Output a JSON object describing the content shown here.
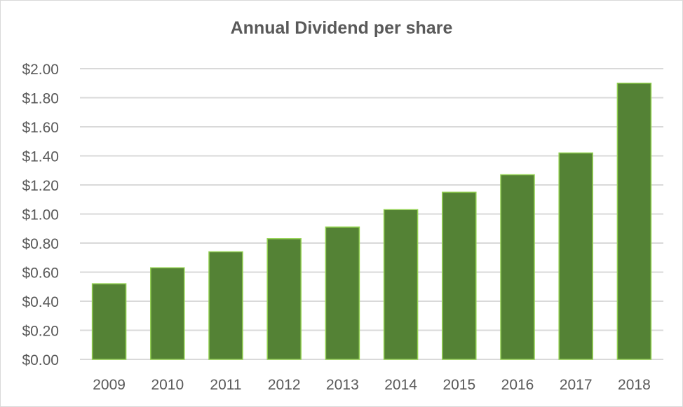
{
  "chart_data": {
    "type": "bar",
    "title": "Annual Dividend per share",
    "categories": [
      "2009",
      "2010",
      "2011",
      "2012",
      "2013",
      "2014",
      "2015",
      "2016",
      "2017",
      "2018"
    ],
    "values": [
      0.52,
      0.63,
      0.74,
      0.83,
      0.91,
      1.03,
      1.15,
      1.27,
      1.42,
      1.9
    ],
    "ylim": [
      0,
      2.0
    ],
    "yticks": [
      "$0.00",
      "$0.20",
      "$0.40",
      "$0.60",
      "$0.80",
      "$1.00",
      "$1.20",
      "$1.40",
      "$1.60",
      "$1.80",
      "$2.00"
    ],
    "xlabel": "",
    "ylabel": "",
    "grid": true,
    "legend": "none",
    "colors": {
      "bar": "#548235",
      "bar_edge": "#92d050",
      "grid": "#d9d9d9",
      "text": "#595959"
    }
  }
}
